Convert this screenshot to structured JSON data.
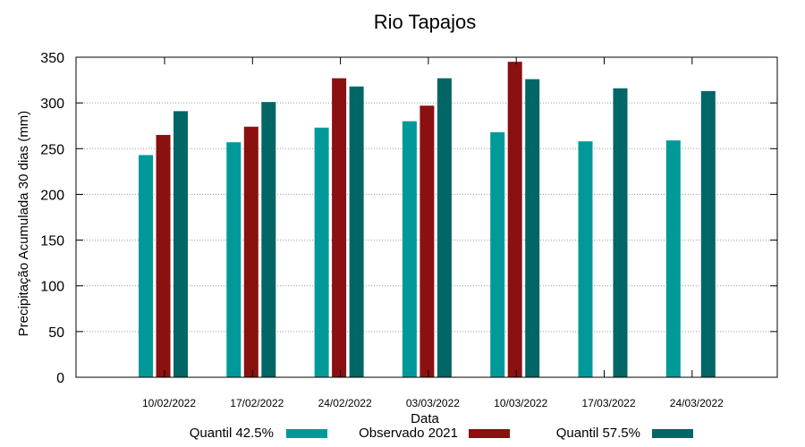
{
  "chart_data": {
    "type": "bar",
    "title": "Rio Tapajos",
    "xlabel": "Data",
    "ylabel": "Precipitação Acumulada 30 dias (mm)",
    "ylim": [
      0,
      350
    ],
    "yticks": [
      0,
      50,
      100,
      150,
      200,
      250,
      300,
      350
    ],
    "grid": true,
    "legend_position": "bottom",
    "categories": [
      "10/02/2022",
      "17/02/2022",
      "24/02/2022",
      "03/03/2022",
      "10/03/2022",
      "17/03/2022",
      "24/03/2022"
    ],
    "series": [
      {
        "name": "Quantil 42.5%",
        "color": "#009999",
        "values": [
          243,
          257,
          273,
          280,
          268,
          258,
          259
        ]
      },
      {
        "name": "Observado 2021",
        "color": "#8b1010",
        "values": [
          265,
          274,
          327,
          297,
          345,
          null,
          null
        ]
      },
      {
        "name": "Quantil 57.5%",
        "color": "#006666",
        "values": [
          291,
          301,
          318,
          327,
          326,
          316,
          313
        ]
      }
    ]
  }
}
